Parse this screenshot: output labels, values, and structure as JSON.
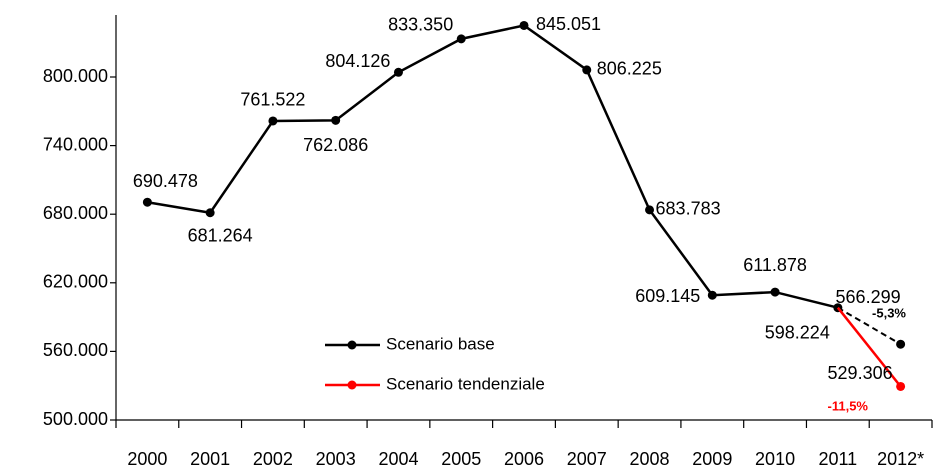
{
  "chart_data": {
    "type": "line",
    "categories": [
      "2000",
      "2001",
      "2002",
      "2003",
      "2004",
      "2005",
      "2006",
      "2007",
      "2008",
      "2009",
      "2010",
      "2011",
      "2012*"
    ],
    "series": [
      {
        "name": "Scenario base",
        "color": "#000000",
        "dash_last": true,
        "values": [
          690478,
          681264,
          761522,
          762086,
          804126,
          833350,
          845051,
          806225,
          683783,
          609145,
          611878,
          598224,
          566299
        ],
        "value_labels": [
          "690.478",
          "681.264",
          "761.522",
          "762.086",
          "804.126",
          "833.350",
          "845.051",
          "806.225",
          "683.783",
          "609.145",
          "611.878",
          "598.224",
          "566.299"
        ]
      },
      {
        "name": "Scenario tendenziale",
        "color": "#ff0000",
        "dash_last": false,
        "values": [
          null,
          null,
          null,
          null,
          null,
          null,
          null,
          null,
          null,
          null,
          null,
          598224,
          529306
        ],
        "value_labels": [
          null,
          null,
          null,
          null,
          null,
          null,
          null,
          null,
          null,
          null,
          null,
          null,
          "529.306"
        ]
      }
    ],
    "annotations": [
      {
        "text": "-5,3%",
        "color": "#000000"
      },
      {
        "text": "-11,5%",
        "color": "#ff0000"
      }
    ],
    "ylim": [
      500000,
      860000
    ],
    "yticks": [
      {
        "value": 500000,
        "label": "500.000"
      },
      {
        "value": 560000,
        "label": "560.000"
      },
      {
        "value": 620000,
        "label": "620.000"
      },
      {
        "value": 680000,
        "label": "680.000"
      },
      {
        "value": 740000,
        "label": "740.000"
      },
      {
        "value": 800000,
        "label": "800.000"
      }
    ],
    "grid": false
  }
}
